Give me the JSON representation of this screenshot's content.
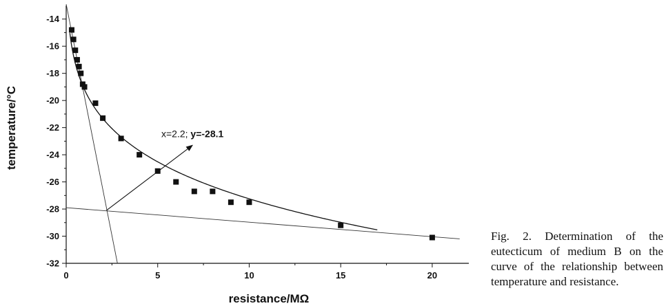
{
  "chart_data": {
    "type": "scatter",
    "xlabel": "resistance/MΩ",
    "ylabel": "temperature/°C",
    "xlim": [
      0,
      22
    ],
    "ylim": [
      -32,
      -13
    ],
    "x_ticks": [
      0,
      5,
      10,
      15,
      20
    ],
    "y_ticks": [
      -14,
      -16,
      -18,
      -20,
      -22,
      -24,
      -26,
      -28,
      -30,
      -32
    ],
    "x_tick_labels": [
      "0",
      "5",
      "10",
      "15",
      "20"
    ],
    "y_tick_labels": [
      "-14",
      "-16",
      "-18",
      "-20",
      "-22",
      "-24",
      "-26",
      "-28",
      "-30",
      "-32"
    ],
    "grid": false,
    "points": [
      {
        "x": 0.3,
        "y": -14.8
      },
      {
        "x": 0.4,
        "y": -15.5
      },
      {
        "x": 0.5,
        "y": -16.3
      },
      {
        "x": 0.6,
        "y": -17.0
      },
      {
        "x": 0.7,
        "y": -17.5
      },
      {
        "x": 0.8,
        "y": -18.0
      },
      {
        "x": 0.9,
        "y": -18.8
      },
      {
        "x": 1.0,
        "y": -19.0
      },
      {
        "x": 1.6,
        "y": -20.2
      },
      {
        "x": 2.0,
        "y": -21.3
      },
      {
        "x": 3.0,
        "y": -22.8
      },
      {
        "x": 4.0,
        "y": -24.0
      },
      {
        "x": 5.0,
        "y": -25.2
      },
      {
        "x": 6.0,
        "y": -26.0
      },
      {
        "x": 7.0,
        "y": -26.7
      },
      {
        "x": 8.0,
        "y": -26.7
      },
      {
        "x": 9.0,
        "y": -27.5
      },
      {
        "x": 10.0,
        "y": -27.5
      },
      {
        "x": 15.0,
        "y": -29.2
      },
      {
        "x": 20.0,
        "y": -30.1
      }
    ],
    "fit_curve": {
      "type": "power",
      "a": -19.2,
      "b": 0.152,
      "x_range": [
        0.2,
        17
      ]
    },
    "tangent_lines": [
      {
        "points": [
          [
            0,
            -12.9
          ],
          [
            2.8,
            -32
          ]
        ]
      },
      {
        "points": [
          [
            0,
            -27.9
          ],
          [
            21.5,
            -30.2
          ]
        ]
      }
    ],
    "annotation": {
      "text_plain": "x=2.2; ",
      "text_bold": "y=-28.1",
      "arrow_from": [
        2.2,
        -28.1
      ],
      "arrow_to": [
        6.9,
        -23.3
      ],
      "text_at": [
        6.9,
        -22.7
      ]
    }
  },
  "caption": "Fig. 2. Determination of the eutecticum of medium B on the curve of the relationship between temperature and resistance."
}
